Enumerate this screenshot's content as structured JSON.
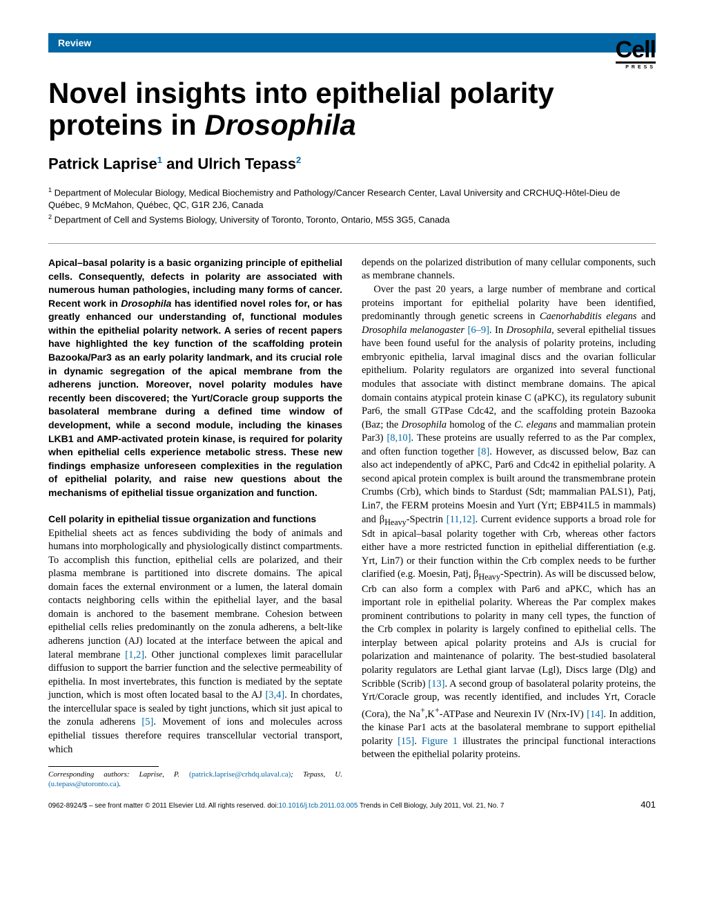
{
  "colors": {
    "accent": "#0066a4",
    "text": "#000000",
    "bg": "#ffffff",
    "rule": "#999999"
  },
  "review_label": "Review",
  "logo": {
    "main": "Cell",
    "sub": "PRESS"
  },
  "title_plain": "Novel insights into epithelial polarity proteins in ",
  "title_ital": "Drosophila",
  "authors_html": "Patrick Laprise<sup>1</sup> and Ulrich Tepass<sup>2</sup>",
  "affiliations": [
    "<sup>1</sup> Department of Molecular Biology, Medical Biochemistry and Pathology/Cancer Research Center, Laval University and CRCHUQ-Hôtel-Dieu de Québec, 9 McMahon, Québec, QC, G1R 2J6, Canada",
    "<sup>2</sup> Department of Cell and Systems Biology, University of Toronto, Toronto, Ontario, M5S 3G5, Canada"
  ],
  "abstract": "Apical–basal polarity is a basic organizing principle of epithelial cells. Consequently, defects in polarity are associated with numerous human pathologies, including many forms of cancer. Recent work in <span class=\"ital\">Drosophila</span> has identified novel roles for, or has greatly enhanced our understanding of, functional modules within the epithelial polarity network. A series of recent papers have highlighted the key function of the scaffolding protein Bazooka/Par3 as an early polarity landmark, and its crucial role in dynamic segregation of the apical membrane from the adherens junction. Moreover, novel polarity modules have recently been discovered; the Yurt/Coracle group supports the basolateral membrane during a defined time window of development, while a second module, including the kinases LKB1 and AMP-activated protein kinase, is required for polarity when epithelial cells experience metabolic stress. These new findings emphasize unforeseen complexities in the regulation of epithelial polarity, and raise new questions about the mechanisms of epithelial tissue organization and function.",
  "section1_heading": "Cell polarity in epithelial tissue organization and functions",
  "section1_para": "Epithelial sheets act as fences subdividing the body of animals and humans into morphologically and physiologically distinct compartments. To accomplish this function, epithelial cells are polarized, and their plasma membrane is partitioned into discrete domains. The apical domain faces the external environment or a lumen, the lateral domain contacts neighboring cells within the epithelial layer, and the basal domain is anchored to the basement membrane. Cohesion between epithelial cells relies predominantly on the zonula adherens, a belt-like adherens junction (AJ) located at the interface between the apical and lateral membrane <span class=\"ref\">[1,2]</span>. Other junctional complexes limit paracellular diffusion to support the barrier function and the selective permeability of epithelia. In most invertebrates, this function is mediated by the septate junction, which is most often located basal to the AJ <span class=\"ref\">[3,4]</span>. In chordates, the intercellular space is sealed by tight junctions, which sit just apical to the zonula adherens <span class=\"ref\">[5]</span>. Movement of ions and molecules across epithelial tissues therefore requires transcellular vectorial transport, which",
  "col2_lead": "depends on the polarized distribution of many cellular components, such as membrane channels.",
  "col2_body": "Over the past 20 years, a large number of membrane and cortical proteins important for epithelial polarity have been identified, predominantly through genetic screens in <span class=\"ital\">Caenorhabditis elegans</span> and <span class=\"ital\">Drosophila melanogaster</span> <span class=\"ref\">[6–9]</span>. In <span class=\"ital\">Drosophila</span>, several epithelial tissues have been found useful for the analysis of polarity proteins, including embryonic epithelia, larval imaginal discs and the ovarian follicular epithelium. Polarity regulators are organized into several functional modules that associate with distinct membrane domains. The apical domain contains atypical protein kinase C (aPKC), its regulatory subunit Par6, the small GTPase Cdc42, and the scaffolding protein Bazooka (Baz; the <span class=\"ital\">Drosophila</span> homolog of the <span class=\"ital\">C. elegans</span> and mammalian protein Par3) <span class=\"ref\">[8,10]</span>. These proteins are usually referred to as the Par complex, and often function together <span class=\"ref\">[8]</span>. However, as discussed below, Baz can also act independently of aPKC, Par6 and Cdc42 in epithelial polarity. A second apical protein complex is built around the transmembrane protein Crumbs (Crb), which binds to Stardust (Sdt; mammalian PALS1), Patj, Lin7, the FERM proteins Moesin and Yurt (Yrt; EBP41L5 in mammals) and β<sub>Heavy</sub>-Spectrin <span class=\"ref\">[11,12]</span>. Current evidence supports a broad role for Sdt in apical–basal polarity together with Crb, whereas other factors either have a more restricted function in epithelial differentiation (e.g. Yrt, Lin7) or their function within the Crb complex needs to be further clarified (e.g. Moesin, Patj, β<sub>Heavy</sub>-Spectrin). As will be discussed below, Crb can also form a complex with Par6 and aPKC, which has an important role in epithelial polarity. Whereas the Par complex makes prominent contributions to polarity in many cell types, the function of the Crb complex in polarity is largely confined to epithelial cells. The interplay between apical polarity proteins and AJs is crucial for polarization and maintenance of polarity. The best-studied basolateral polarity regulators are Lethal giant larvae (Lgl), Discs large (Dlg) and Scribble (Scrib) <span class=\"ref\">[13]</span>. A second group of basolateral polarity proteins, the Yrt/Coracle group, was recently identified, and includes Yrt, Coracle (Cora), the Na<sup>+</sup>,K<sup>+</sup>-ATPase and Neurexin IV (Nrx-IV) <span class=\"ref\">[14]</span>. In addition, the kinase Par1 acts at the basolateral membrane to support epithelial polarity <span class=\"ref\">[15]</span>. <span class=\"ref\">Figure 1</span> illustrates the principal functional interactions between the epithelial polarity proteins.",
  "footnote": "Corresponding authors: Laprise, P. <span class=\"ref\">(patrick.laprise@crhdq.ulaval.ca)</span>; Tepass, U. <span class=\"ref\">(u.tepass@utoronto.ca)</span>.",
  "footer_left": "0962-8924/$ – see front matter © 2011 Elsevier Ltd. All rights reserved. doi:",
  "footer_doi": "10.1016/j.tcb.2011.03.005",
  "footer_right": " Trends in Cell Biology, July 2011, Vol. 21, No. 7",
  "page_number": "401"
}
